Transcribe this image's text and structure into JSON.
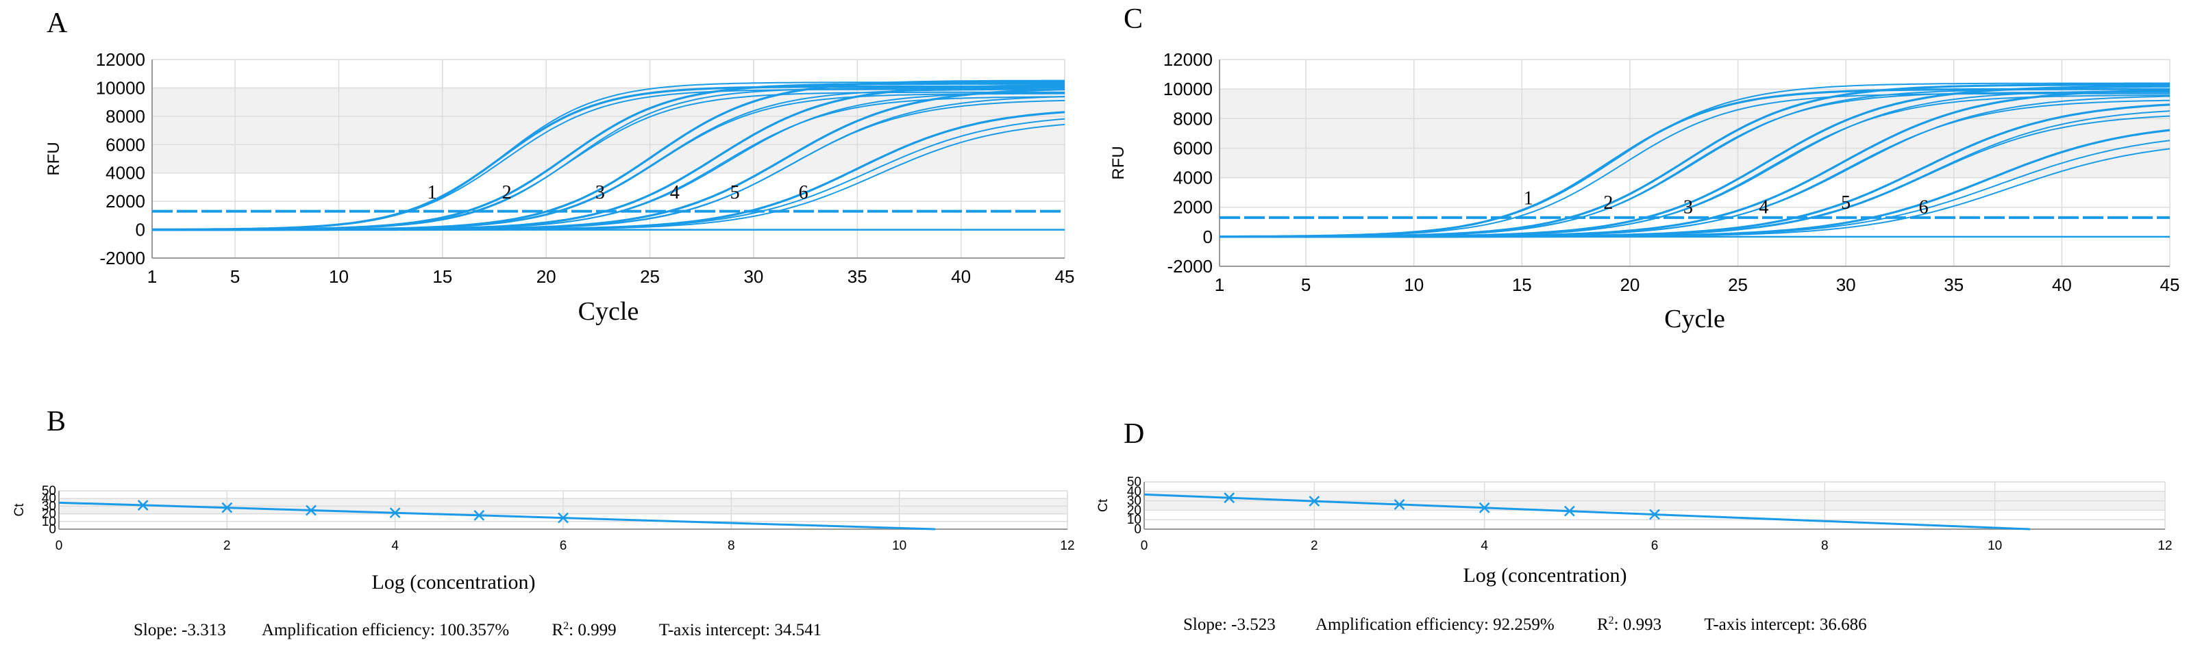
{
  "panels": {
    "A": {
      "letter": "A"
    },
    "B": {
      "letter": "B"
    },
    "C": {
      "letter": "C"
    },
    "D": {
      "letter": "D"
    }
  },
  "stats": {
    "B": {
      "slope": "Slope: -3.313",
      "efficiency": "Amplification efficiency: 100.357%",
      "r2_prefix": "R",
      "r2_sup": "2",
      "r2_value": ": 0.999",
      "intercept": "T-axis intercept: 34.541"
    },
    "D": {
      "slope": "Slope: -3.523",
      "efficiency": "Amplification efficiency: 92.259%",
      "r2_prefix": "R",
      "r2_sup": "2",
      "r2_value": ": 0.993",
      "intercept": "T-axis intercept: 36.686"
    }
  },
  "chart_data": [
    {
      "id": "A",
      "type": "line",
      "xlabel": "Cycle",
      "ylabel": "RFU",
      "xlim": [
        1,
        45
      ],
      "ylim": [
        -2000,
        12000
      ],
      "xticks": [
        1,
        5,
        10,
        15,
        20,
        25,
        30,
        35,
        40,
        45
      ],
      "yticks": [
        -2000,
        0,
        2000,
        4000,
        6000,
        8000,
        10000,
        12000
      ],
      "threshold": 1300,
      "color": "#1a9be8",
      "dilution_labels": [
        {
          "text": "1",
          "x": 14.5,
          "y": 2200
        },
        {
          "text": "2",
          "x": 18.1,
          "y": 2200
        },
        {
          "text": "3",
          "x": 22.6,
          "y": 2200
        },
        {
          "text": "4",
          "x": 26.2,
          "y": 2200
        },
        {
          "text": "5",
          "x": 29.1,
          "y": 2200
        },
        {
          "text": "6",
          "x": 32.4,
          "y": 2200
        }
      ],
      "curve_groups": [
        {
          "label": "1",
          "curves": [
            {
              "mid": 17.8,
              "k": 0.42,
              "plateau": 10100
            },
            {
              "mid": 18.0,
              "k": 0.41,
              "plateau": 9900
            },
            {
              "mid": 17.9,
              "k": 0.43,
              "plateau": 10400
            }
          ]
        },
        {
          "label": "2",
          "curves": [
            {
              "mid": 21.0,
              "k": 0.4,
              "plateau": 10300
            },
            {
              "mid": 21.3,
              "k": 0.41,
              "plateau": 10000
            },
            {
              "mid": 21.2,
              "k": 0.4,
              "plateau": 9700
            }
          ]
        },
        {
          "label": "3",
          "curves": [
            {
              "mid": 25.2,
              "k": 0.38,
              "plateau": 10500
            },
            {
              "mid": 25.5,
              "k": 0.38,
              "plateau": 9900
            },
            {
              "mid": 25.4,
              "k": 0.39,
              "plateau": 9600
            }
          ]
        },
        {
          "label": "4",
          "curves": [
            {
              "mid": 28.2,
              "k": 0.36,
              "plateau": 10200
            },
            {
              "mid": 28.8,
              "k": 0.36,
              "plateau": 9700
            },
            {
              "mid": 28.5,
              "k": 0.37,
              "plateau": 9400
            }
          ]
        },
        {
          "label": "5",
          "curves": [
            {
              "mid": 31.5,
              "k": 0.34,
              "plateau": 10000
            },
            {
              "mid": 32.0,
              "k": 0.34,
              "plateau": 9500
            },
            {
              "mid": 31.8,
              "k": 0.35,
              "plateau": 9200
            }
          ]
        },
        {
          "label": "6",
          "curves": [
            {
              "mid": 35.0,
              "k": 0.33,
              "plateau": 8600
            },
            {
              "mid": 35.6,
              "k": 0.32,
              "plateau": 8200
            },
            {
              "mid": 36.0,
              "k": 0.33,
              "plateau": 7800
            }
          ]
        }
      ]
    },
    {
      "id": "C",
      "type": "line",
      "xlabel": "Cycle",
      "ylabel": "RFU",
      "xlim": [
        1,
        45
      ],
      "ylim": [
        -2000,
        12000
      ],
      "xticks": [
        1,
        5,
        10,
        15,
        20,
        25,
        30,
        35,
        40,
        45
      ],
      "yticks": [
        -2000,
        0,
        2000,
        4000,
        6000,
        8000,
        10000,
        12000
      ],
      "threshold": 1300,
      "color": "#1a9be8",
      "dilution_labels": [
        {
          "text": "1",
          "x": 15.3,
          "y": 2200
        },
        {
          "text": "2",
          "x": 19.0,
          "y": 1900
        },
        {
          "text": "3",
          "x": 22.7,
          "y": 1600
        },
        {
          "text": "4",
          "x": 26.2,
          "y": 1600
        },
        {
          "text": "5",
          "x": 30.0,
          "y": 1900
        },
        {
          "text": "6",
          "x": 33.6,
          "y": 1600
        }
      ],
      "curve_groups": [
        {
          "label": "1",
          "curves": [
            {
              "mid": 19.0,
              "k": 0.38,
              "plateau": 10000
            },
            {
              "mid": 19.3,
              "k": 0.37,
              "plateau": 10400
            },
            {
              "mid": 19.6,
              "k": 0.38,
              "plateau": 9700
            }
          ]
        },
        {
          "label": "2",
          "curves": [
            {
              "mid": 22.6,
              "k": 0.36,
              "plateau": 10300
            },
            {
              "mid": 23.0,
              "k": 0.36,
              "plateau": 10000
            },
            {
              "mid": 22.8,
              "k": 0.37,
              "plateau": 9800
            }
          ]
        },
        {
          "label": "3",
          "curves": [
            {
              "mid": 26.4,
              "k": 0.34,
              "plateau": 10200
            },
            {
              "mid": 26.9,
              "k": 0.34,
              "plateau": 9900
            },
            {
              "mid": 26.6,
              "k": 0.35,
              "plateau": 9600
            }
          ]
        },
        {
          "label": "4",
          "curves": [
            {
              "mid": 29.8,
              "k": 0.32,
              "plateau": 10000
            },
            {
              "mid": 30.4,
              "k": 0.32,
              "plateau": 9600
            },
            {
              "mid": 30.1,
              "k": 0.33,
              "plateau": 9300
            }
          ]
        },
        {
          "label": "5",
          "curves": [
            {
              "mid": 33.5,
              "k": 0.31,
              "plateau": 9200
            },
            {
              "mid": 34.0,
              "k": 0.31,
              "plateau": 8800
            },
            {
              "mid": 33.8,
              "k": 0.32,
              "plateau": 8400
            }
          ]
        },
        {
          "label": "6",
          "curves": [
            {
              "mid": 36.6,
              "k": 0.3,
              "plateau": 7800
            },
            {
              "mid": 37.2,
              "k": 0.29,
              "plateau": 7200
            },
            {
              "mid": 37.6,
              "k": 0.3,
              "plateau": 6600
            }
          ]
        }
      ]
    },
    {
      "id": "B",
      "type": "scatter",
      "xlabel": "Log (concentration)",
      "ylabel": "Ct",
      "xlim": [
        0,
        12
      ],
      "ylim": [
        0,
        50
      ],
      "xticks": [
        0,
        2,
        4,
        6,
        8,
        10,
        12
      ],
      "yticks": [
        0,
        10,
        20,
        30,
        40,
        50
      ],
      "color": "#1a9be8",
      "points": [
        {
          "x": 1,
          "y": 31.2
        },
        {
          "x": 2,
          "y": 28.0
        },
        {
          "x": 3,
          "y": 24.6
        },
        {
          "x": 4,
          "y": 21.3
        },
        {
          "x": 5,
          "y": 18.0
        },
        {
          "x": 6,
          "y": 14.7
        }
      ],
      "fit": {
        "slope": -3.313,
        "intercept": 34.541
      }
    },
    {
      "id": "D",
      "type": "scatter",
      "xlabel": "Log (concentration)",
      "ylabel": "Ct",
      "xlim": [
        0,
        12
      ],
      "ylim": [
        0,
        50
      ],
      "xticks": [
        0,
        2,
        4,
        6,
        8,
        10,
        12
      ],
      "yticks": [
        0,
        10,
        20,
        30,
        40,
        50
      ],
      "color": "#1a9be8",
      "points": [
        {
          "x": 1,
          "y": 33.2
        },
        {
          "x": 2,
          "y": 29.6
        },
        {
          "x": 3,
          "y": 26.1
        },
        {
          "x": 4,
          "y": 22.6
        },
        {
          "x": 5,
          "y": 19.1
        },
        {
          "x": 6,
          "y": 15.6
        }
      ],
      "fit": {
        "slope": -3.523,
        "intercept": 36.686
      }
    }
  ]
}
